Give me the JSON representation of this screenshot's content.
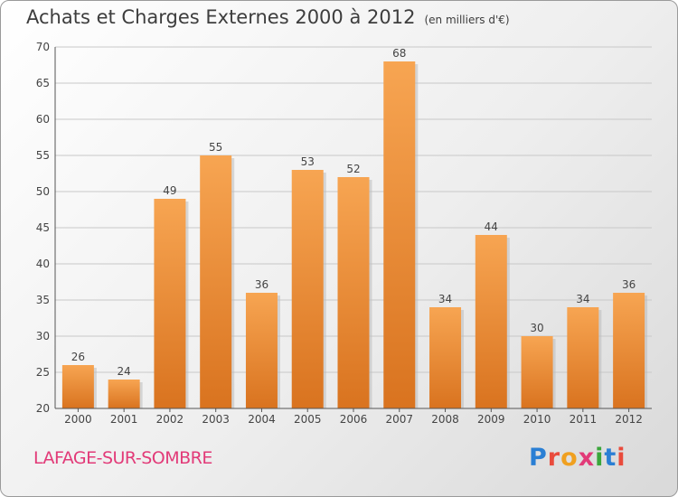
{
  "title": "Achats et Charges Externes 2000 à 2012",
  "unit": "(en milliers d'€)",
  "commune": "LAFAGE-SUR-SOMBRE",
  "brand": {
    "text": "Proxiti",
    "letter_colors": [
      "#2a7fd4",
      "#e94b3c",
      "#f0a020",
      "#e23a78",
      "#3aa63a",
      "#2a7fd4",
      "#e94b3c"
    ]
  },
  "chart_data": {
    "type": "bar",
    "categories": [
      "2000",
      "2001",
      "2002",
      "2003",
      "2004",
      "2005",
      "2006",
      "2007",
      "2008",
      "2009",
      "2010",
      "2011",
      "2012"
    ],
    "values": [
      26,
      24,
      49,
      55,
      36,
      53,
      52,
      68,
      34,
      44,
      30,
      34,
      36
    ],
    "ylim": [
      20,
      70
    ],
    "yticks": [
      20,
      25,
      30,
      35,
      40,
      45,
      50,
      55,
      60,
      65,
      70
    ],
    "grid": true,
    "bar_color_top": "#f7a552",
    "bar_color_bottom": "#d9731f",
    "xlabel": "",
    "ylabel": ""
  }
}
